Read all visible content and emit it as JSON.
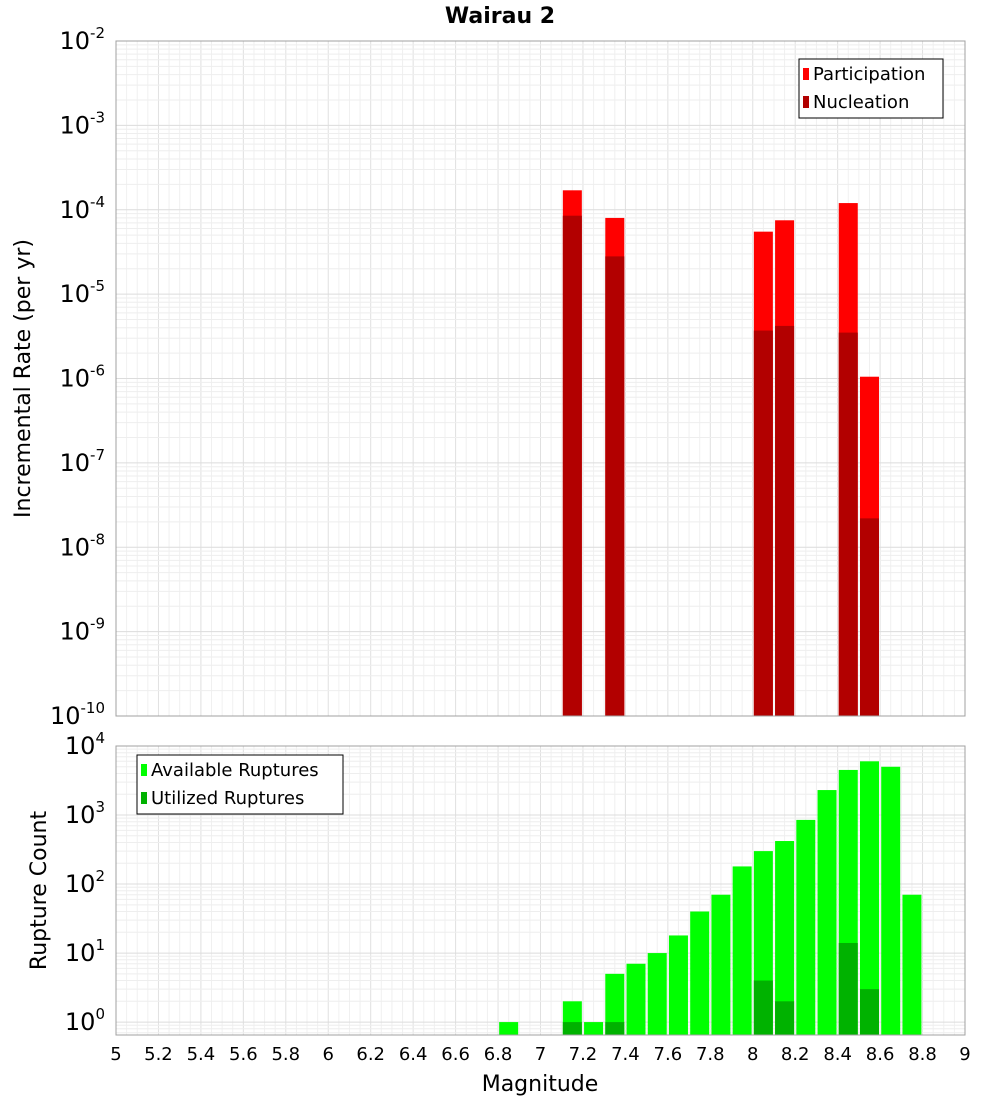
{
  "chart_data": {
    "title": "Wairau 2",
    "xlabel": "Magnitude",
    "xlim": [
      5,
      9
    ],
    "x_ticks": [
      "5",
      "5.2",
      "5.4",
      "5.6",
      "5.8",
      "6",
      "6.2",
      "6.4",
      "6.6",
      "6.8",
      "7",
      "7.2",
      "7.4",
      "7.6",
      "7.8",
      "8",
      "8.2",
      "8.4",
      "8.6",
      "8.8",
      "9"
    ],
    "grid": true,
    "panels": [
      {
        "type": "bar",
        "ylabel": "Incremental Rate (per yr)",
        "yscale": "log",
        "ylim": [
          1e-10,
          0.01
        ],
        "y_tick_exponents": [
          -10,
          -9,
          -8,
          -7,
          -6,
          -5,
          -4,
          -3,
          -2
        ],
        "legend": {
          "position": "top-right",
          "entries": [
            {
              "name": "Participation",
              "color": "#ff0000"
            },
            {
              "name": "Nucleation",
              "color": "#b20000"
            }
          ]
        },
        "series": [
          {
            "name": "Participation",
            "color": "#ff0000",
            "x": [
              7.15,
              7.35,
              8.05,
              8.15,
              8.45,
              8.55
            ],
            "values": [
              0.00017,
              8e-05,
              5.5e-05,
              7.5e-05,
              0.00012,
              1.05e-06
            ]
          },
          {
            "name": "Nucleation",
            "color": "#b20000",
            "x": [
              7.15,
              7.35,
              8.05,
              8.15,
              8.45,
              8.55
            ],
            "values": [
              8.5e-05,
              2.8e-05,
              3.7e-06,
              4.2e-06,
              3.5e-06,
              2.2e-08
            ]
          }
        ]
      },
      {
        "type": "bar",
        "ylabel": "Rupture Count",
        "yscale": "log",
        "ylim": [
          0.65,
          10000
        ],
        "y_tick_exponents": [
          0,
          1,
          2,
          3,
          4
        ],
        "legend": {
          "position": "top-left",
          "entries": [
            {
              "name": "Available Ruptures",
              "color": "#00ff00"
            },
            {
              "name": "Utilized Ruptures",
              "color": "#00b200"
            }
          ]
        },
        "series": [
          {
            "name": "Available Ruptures",
            "color": "#00ff00",
            "x": [
              6.85,
              7.15,
              7.25,
              7.35,
              7.45,
              7.55,
              7.65,
              7.75,
              7.85,
              7.95,
              8.05,
              8.15,
              8.25,
              8.35,
              8.45,
              8.55,
              8.65,
              8.75
            ],
            "values": [
              1,
              2,
              1,
              5,
              7,
              10,
              18,
              40,
              70,
              180,
              300,
              420,
              850,
              2300,
              4500,
              6000,
              5000,
              70
            ]
          },
          {
            "name": "Utilized Ruptures",
            "color": "#00b200",
            "x": [
              7.15,
              7.35,
              8.05,
              8.15,
              8.45,
              8.55
            ],
            "values": [
              1,
              1,
              4,
              2,
              14,
              3
            ]
          }
        ]
      }
    ]
  }
}
